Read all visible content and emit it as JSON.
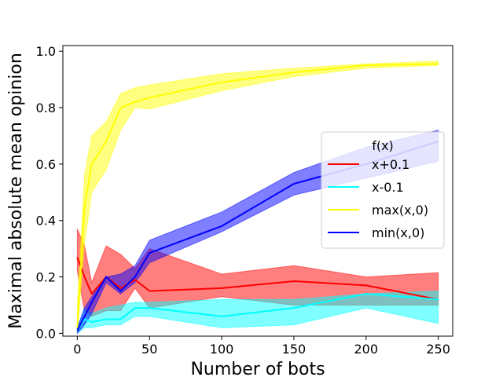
{
  "chart_data": {
    "type": "line",
    "xlabel": "Number of bots",
    "ylabel": "Maximal absolute mean opinion",
    "xlim": [
      -10,
      260
    ],
    "ylim": [
      -0.01,
      1.02
    ],
    "xticks": [
      0,
      50,
      100,
      150,
      200,
      250
    ],
    "yticks": [
      0.0,
      0.2,
      0.4,
      0.6,
      0.8,
      1.0
    ],
    "xtick_labels": [
      "0",
      "50",
      "100",
      "150",
      "200",
      "250"
    ],
    "ytick_labels": [
      "0.0",
      "0.2",
      "0.4",
      "0.6",
      "0.8",
      "1.0"
    ],
    "grid": false,
    "legend": {
      "title": "f(x)",
      "placement": "center-right"
    },
    "x": [
      0,
      5,
      10,
      20,
      30,
      40,
      50,
      100,
      150,
      200,
      250
    ],
    "series": [
      {
        "name": "x+0.1",
        "color": "#ff0000",
        "values": [
          0.27,
          0.2,
          0.14,
          0.2,
          0.16,
          0.19,
          0.15,
          0.16,
          0.185,
          0.17,
          0.12
        ],
        "lower": [
          0.22,
          0.08,
          0.06,
          0.08,
          0.08,
          0.16,
          0.09,
          0.13,
          0.1,
          0.1,
          0.1
        ],
        "upper": [
          0.37,
          0.31,
          0.18,
          0.31,
          0.28,
          0.23,
          0.3,
          0.21,
          0.24,
          0.2,
          0.215
        ]
      },
      {
        "name": "x-0.1",
        "color": "#00ffff",
        "values": [
          0.01,
          0.05,
          0.04,
          0.05,
          0.05,
          0.09,
          0.09,
          0.06,
          0.09,
          0.14,
          0.12
        ],
        "lower": [
          0.0,
          0.02,
          0.02,
          0.03,
          0.03,
          0.06,
          0.06,
          0.02,
          0.03,
          0.09,
          0.035
        ],
        "upper": [
          0.02,
          0.09,
          0.07,
          0.09,
          0.1,
          0.11,
          0.11,
          0.12,
          0.12,
          0.14,
          0.15
        ]
      },
      {
        "name": "max(x,0)",
        "color": "#ffff00",
        "values": [
          0.02,
          0.45,
          0.6,
          0.68,
          0.8,
          0.82,
          0.835,
          0.89,
          0.925,
          0.95,
          0.955
        ],
        "lower": [
          0.0,
          0.32,
          0.5,
          0.58,
          0.72,
          0.8,
          0.795,
          0.86,
          0.91,
          0.94,
          0.95
        ],
        "upper": [
          0.1,
          0.56,
          0.7,
          0.75,
          0.85,
          0.87,
          0.88,
          0.92,
          0.94,
          0.955,
          0.965
        ]
      },
      {
        "name": "min(x,0)",
        "color": "#0000ff",
        "values": [
          0.01,
          0.06,
          0.11,
          0.2,
          0.15,
          0.2,
          0.285,
          0.38,
          0.53,
          0.6,
          0.68
        ],
        "lower": [
          0.0,
          0.03,
          0.07,
          0.18,
          0.14,
          0.18,
          0.25,
          0.36,
          0.49,
          0.55,
          0.61
        ],
        "upper": [
          0.02,
          0.09,
          0.13,
          0.2,
          0.21,
          0.24,
          0.33,
          0.43,
          0.57,
          0.66,
          0.72
        ]
      }
    ]
  }
}
